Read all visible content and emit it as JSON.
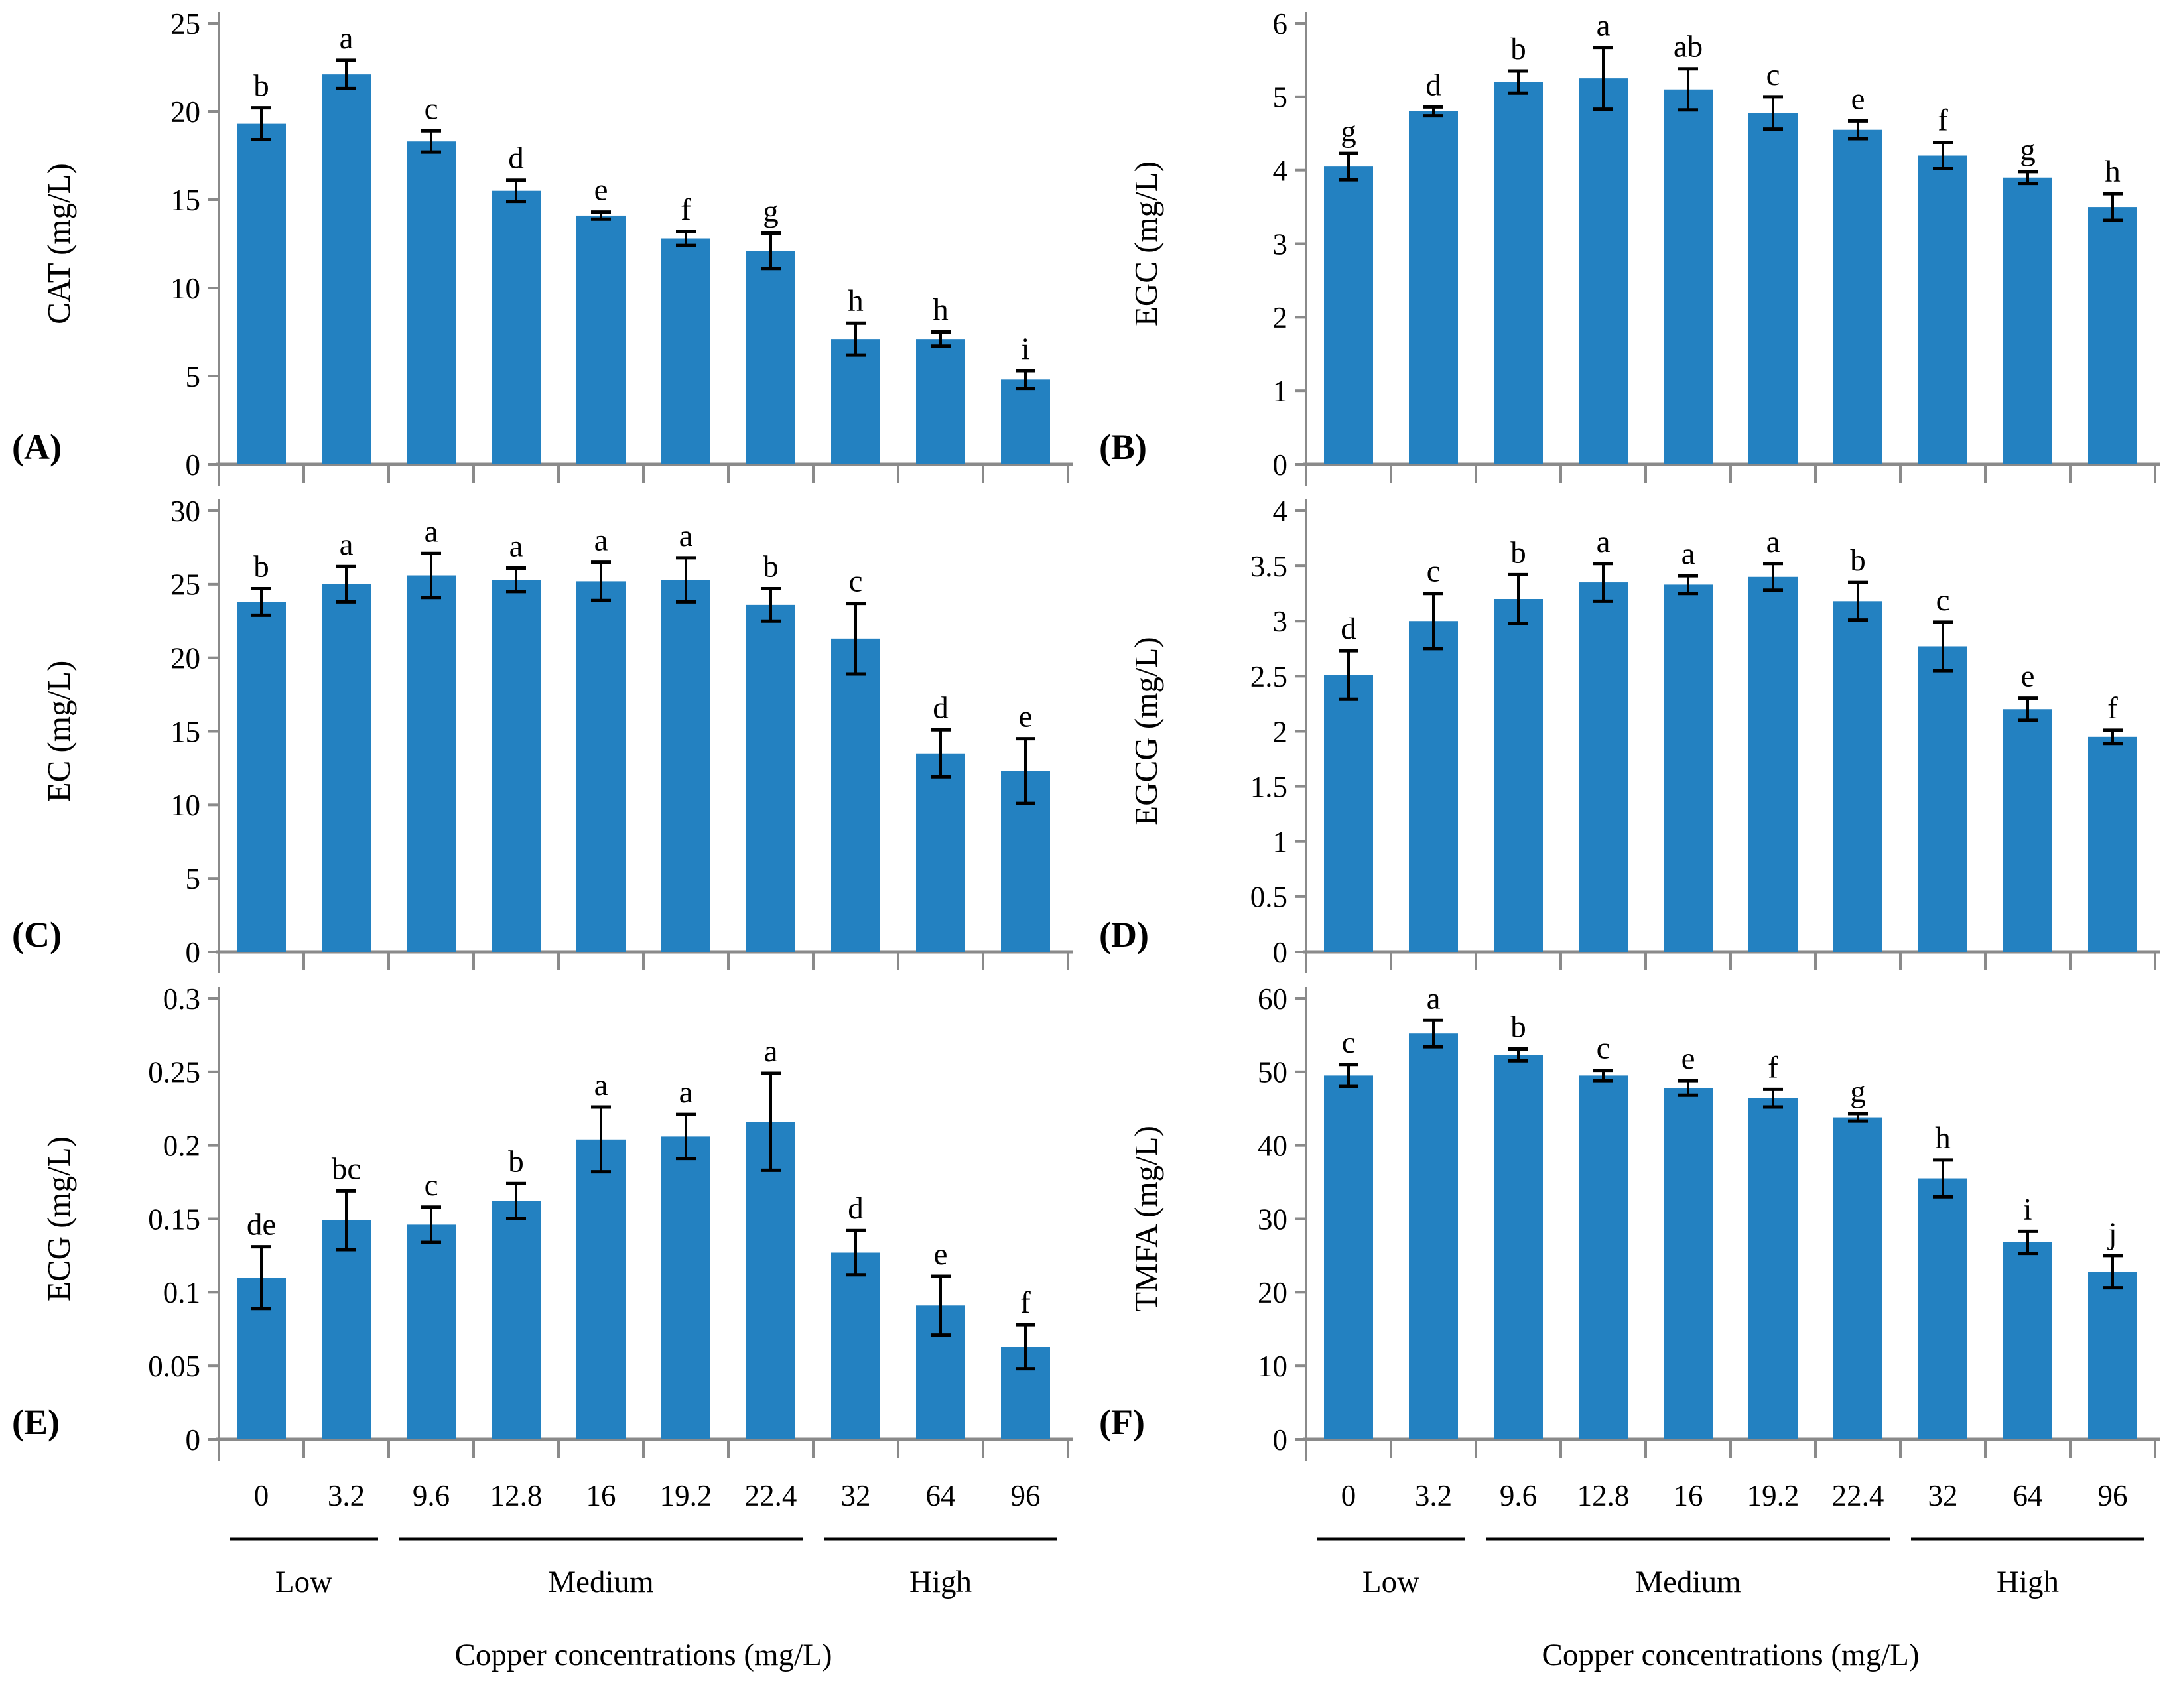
{
  "figure": {
    "x_axis_title": "Copper concentrations (mg/L)",
    "categories": [
      "0",
      "3.2",
      "9.6",
      "12.8",
      "16",
      "19.2",
      "22.4",
      "32",
      "64",
      "96"
    ],
    "groups": [
      {
        "label": "Low",
        "from": 0,
        "to": 1
      },
      {
        "label": "Medium",
        "from": 2,
        "to": 6
      },
      {
        "label": "High",
        "from": 7,
        "to": 9
      }
    ],
    "bar_color": "#2381c1",
    "axis_color": "#8a8a8a",
    "error_bar_color": "#000000",
    "text_color": "#000000"
  },
  "chart_data": [
    {
      "id": "A",
      "type": "bar",
      "panel_label": "(A)",
      "ylabel": "CAT (mg/L)",
      "ylim": [
        0,
        25
      ],
      "yticks": [
        "0",
        "5",
        "10",
        "15",
        "20",
        "25"
      ],
      "show_x_axis": false,
      "values": [
        19.3,
        22.1,
        18.3,
        15.5,
        14.1,
        12.8,
        12.1,
        7.1,
        7.1,
        4.8
      ],
      "errors": [
        0.9,
        0.8,
        0.6,
        0.6,
        0.2,
        0.4,
        1.0,
        0.9,
        0.4,
        0.5
      ],
      "letters": [
        "b",
        "a",
        "c",
        "d",
        "e",
        "f",
        "g",
        "h",
        "h",
        "i"
      ]
    },
    {
      "id": "B",
      "type": "bar",
      "panel_label": "(B)",
      "ylabel": "EGC (mg/L)",
      "ylim": [
        0,
        6
      ],
      "yticks": [
        "0",
        "1",
        "2",
        "3",
        "4",
        "5",
        "6"
      ],
      "show_x_axis": false,
      "values": [
        4.05,
        4.8,
        5.2,
        5.25,
        5.1,
        4.78,
        4.55,
        4.2,
        3.9,
        3.5
      ],
      "errors": [
        0.18,
        0.06,
        0.15,
        0.42,
        0.28,
        0.22,
        0.12,
        0.18,
        0.08,
        0.18
      ],
      "letters": [
        "g",
        "d",
        "b",
        "a",
        "ab",
        "c",
        "e",
        "f",
        "g",
        "h"
      ]
    },
    {
      "id": "C",
      "type": "bar",
      "panel_label": "(C)",
      "ylabel": "EC (mg/L)",
      "ylim": [
        0,
        30
      ],
      "yticks": [
        "0",
        "5",
        "10",
        "15",
        "20",
        "25",
        "30"
      ],
      "show_x_axis": false,
      "values": [
        23.8,
        25.0,
        25.6,
        25.3,
        25.2,
        25.3,
        23.6,
        21.3,
        13.5,
        12.3
      ],
      "errors": [
        0.9,
        1.2,
        1.5,
        0.8,
        1.3,
        1.5,
        1.1,
        2.4,
        1.6,
        2.2
      ],
      "letters": [
        "b",
        "a",
        "a",
        "a",
        "a",
        "a",
        "b",
        "c",
        "d",
        "e"
      ]
    },
    {
      "id": "D",
      "type": "bar",
      "panel_label": "(D)",
      "ylabel": "EGCG  (mg/L)",
      "ylim": [
        0,
        4
      ],
      "yticks": [
        "0",
        "0.5",
        "1",
        "1.5",
        "2",
        "2.5",
        "3",
        "3.5",
        "4"
      ],
      "show_x_axis": false,
      "values": [
        2.51,
        3.0,
        3.2,
        3.35,
        3.33,
        3.4,
        3.18,
        2.77,
        2.2,
        1.95
      ],
      "errors": [
        0.22,
        0.25,
        0.22,
        0.17,
        0.08,
        0.12,
        0.17,
        0.22,
        0.1,
        0.06
      ],
      "letters": [
        "d",
        "c",
        "b",
        "a",
        "a",
        "a",
        "b",
        "c",
        "e",
        "f"
      ]
    },
    {
      "id": "E",
      "type": "bar",
      "panel_label": "(E)",
      "ylabel": "ECG  (mg/L)",
      "ylim": [
        0,
        0.3
      ],
      "yticks": [
        "0",
        "0.05",
        "0.1",
        "0.15",
        "0.2",
        "0.25",
        "0.3"
      ],
      "show_x_axis": true,
      "values": [
        0.11,
        0.149,
        0.146,
        0.162,
        0.204,
        0.206,
        0.216,
        0.127,
        0.091,
        0.063
      ],
      "errors": [
        0.021,
        0.02,
        0.012,
        0.012,
        0.022,
        0.015,
        0.033,
        0.015,
        0.02,
        0.015
      ],
      "letters": [
        "de",
        "bc",
        "c",
        "b",
        "a",
        "a",
        "a",
        "d",
        "e",
        "f"
      ]
    },
    {
      "id": "F",
      "type": "bar",
      "panel_label": "(F)",
      "ylabel": "TMFA  (mg/L)",
      "ylim": [
        0,
        60
      ],
      "yticks": [
        "0",
        "10",
        "20",
        "30",
        "40",
        "50",
        "60"
      ],
      "show_x_axis": true,
      "values": [
        49.5,
        55.2,
        52.3,
        49.5,
        47.8,
        46.4,
        43.8,
        35.5,
        26.8,
        22.8
      ],
      "errors": [
        1.5,
        1.8,
        0.8,
        0.7,
        1.0,
        1.2,
        0.5,
        2.5,
        1.5,
        2.2
      ],
      "letters": [
        "c",
        "a",
        "b",
        "c",
        "e",
        "f",
        "g",
        "h",
        "i",
        "j"
      ]
    }
  ]
}
